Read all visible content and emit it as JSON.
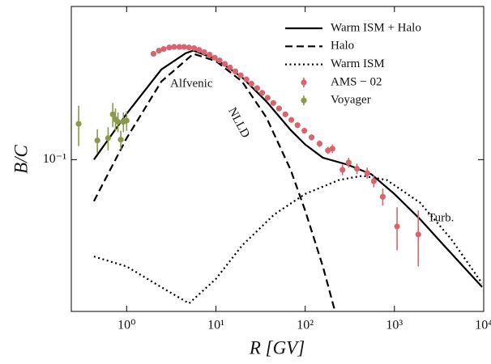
{
  "chart_data": {
    "type": "line",
    "xlabel": "R [GV]",
    "ylabel": "B/C",
    "log_x": true,
    "log_y": true,
    "xlim": [
      0.24,
      10000
    ],
    "ylim": [
      0.0207,
      0.49
    ],
    "xticks": [
      {
        "value": 1,
        "label": "10⁰"
      },
      {
        "value": 10,
        "label": "10¹"
      },
      {
        "value": 100,
        "label": "10²"
      },
      {
        "value": 1000,
        "label": "10³"
      },
      {
        "value": 10000,
        "label": "10⁴"
      }
    ],
    "yticks": [
      {
        "value": 0.1,
        "label": "10⁻¹"
      }
    ],
    "legend": "upper right",
    "annotations": [
      "Alfvenic",
      "NLLD",
      "Turb."
    ],
    "series": [
      {
        "name": "Warm ISM  +  Halo",
        "style": "solid",
        "color": "#000000",
        "x": [
          0.43,
          1,
          2.45,
          4.6,
          5.6,
          10,
          19.6,
          36.7,
          68.7,
          100,
          158,
          297,
          550,
          1000,
          1930,
          3600,
          9600
        ],
        "values": [
          0.1,
          0.161,
          0.255,
          0.302,
          0.31,
          0.284,
          0.235,
          0.183,
          0.136,
          0.117,
          0.102,
          0.095,
          0.086,
          0.07,
          0.054,
          0.041,
          0.0267
        ]
      },
      {
        "name": "Halo",
        "style": "dashed",
        "color": "#000000",
        "x": [
          0.43,
          1,
          2.45,
          5.6,
          10,
          19.6,
          36.7,
          68.7,
          100,
          158,
          216
        ],
        "values": [
          0.065,
          0.125,
          0.225,
          0.3,
          0.278,
          0.225,
          0.155,
          0.09,
          0.059,
          0.033,
          0.0207
        ]
      },
      {
        "name": "Warm ISM",
        "style": "dotted",
        "color": "#000000",
        "x": [
          0.43,
          1,
          2.45,
          5,
          10,
          19.6,
          45,
          100,
          240,
          440,
          820,
          1930,
          4300,
          9600
        ],
        "values": [
          0.0366,
          0.033,
          0.0266,
          0.0225,
          0.029,
          0.041,
          0.0566,
          0.07,
          0.081,
          0.0846,
          0.081,
          0.064,
          0.044,
          0.0277
        ]
      },
      {
        "name": "AMS − 02",
        "style": "points",
        "color": "#d9646e",
        "x": [
          2.0,
          2.3,
          2.6,
          3.0,
          3.4,
          3.9,
          4.4,
          5.0,
          5.7,
          6.5,
          7.4,
          8.5,
          9.7,
          11,
          12.6,
          14.4,
          16.5,
          19,
          22,
          25,
          29,
          33,
          38,
          44,
          51,
          60,
          70,
          82,
          98,
          118,
          145,
          180,
          202,
          262,
          307,
          380,
          495,
          587,
          740,
          1070,
          1850
        ],
        "values": [
          0.3,
          0.31,
          0.315,
          0.32,
          0.322,
          0.322,
          0.322,
          0.32,
          0.318,
          0.312,
          0.305,
          0.297,
          0.288,
          0.28,
          0.27,
          0.26,
          0.25,
          0.24,
          0.23,
          0.22,
          0.21,
          0.2,
          0.19,
          0.18,
          0.17,
          0.16,
          0.151,
          0.143,
          0.135,
          0.126,
          0.118,
          0.11,
          0.112,
          0.09,
          0.097,
          0.091,
          0.087,
          0.08,
          0.068,
          0.05,
          0.046
        ],
        "errors": [
          0.006,
          0.006,
          0.006,
          0.006,
          0.006,
          0.006,
          0.006,
          0.006,
          0.006,
          0.006,
          0.006,
          0.006,
          0.006,
          0.005,
          0.005,
          0.005,
          0.005,
          0.005,
          0.005,
          0.005,
          0.005,
          0.005,
          0.005,
          0.005,
          0.004,
          0.004,
          0.004,
          0.004,
          0.004,
          0.004,
          0.004,
          0.004,
          0.005,
          0.005,
          0.005,
          0.005,
          0.005,
          0.005,
          0.006,
          0.011,
          0.013
        ]
      },
      {
        "name": "Voyager",
        "style": "points",
        "color": "#8a9a4b",
        "x": [
          0.29,
          0.47,
          0.62,
          0.7,
          0.75,
          0.8,
          0.86,
          0.92,
          1.0
        ],
        "values": [
          0.145,
          0.122,
          0.125,
          0.16,
          0.152,
          0.148,
          0.123,
          0.148,
          0.15
        ],
        "errors": [
          0.03,
          0.015,
          0.015,
          0.02,
          0.018,
          0.015,
          0.012,
          0.015,
          0.015
        ]
      }
    ]
  }
}
